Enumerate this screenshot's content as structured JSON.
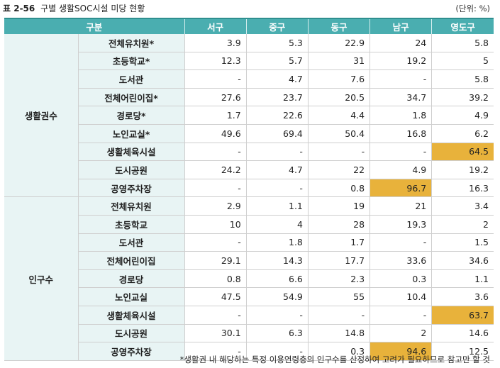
{
  "caption": {
    "label": "표 2-56",
    "title": "구별 생활SOC시설 미당 현황"
  },
  "unit": "(단위: %)",
  "header": [
    "구분",
    "서구",
    "중구",
    "동구",
    "남구",
    "영도구"
  ],
  "groups": [
    {
      "name": "생활권수",
      "rows": [
        {
          "item": "전체유치원*",
          "values": [
            "3.9",
            "5.3",
            "22.9",
            "24",
            "5.8"
          ],
          "highlight": []
        },
        {
          "item": "초등학교*",
          "values": [
            "12.3",
            "5.7",
            "31",
            "19.2",
            "5"
          ],
          "highlight": []
        },
        {
          "item": "도서관",
          "values": [
            "-",
            "4.7",
            "7.6",
            "-",
            "5.8"
          ],
          "highlight": []
        },
        {
          "item": "전체어린이집*",
          "values": [
            "27.6",
            "23.7",
            "20.5",
            "34.7",
            "39.2"
          ],
          "highlight": []
        },
        {
          "item": "경로당*",
          "values": [
            "1.7",
            "22.6",
            "4.4",
            "1.8",
            "4.9"
          ],
          "highlight": []
        },
        {
          "item": "노인교실*",
          "values": [
            "49.6",
            "69.4",
            "50.4",
            "16.8",
            "6.2"
          ],
          "highlight": []
        },
        {
          "item": "생활체육시설",
          "values": [
            "-",
            "-",
            "-",
            "-",
            "64.5"
          ],
          "highlight": [
            4
          ]
        },
        {
          "item": "도시공원",
          "values": [
            "24.2",
            "4.7",
            "22",
            "4.9",
            "19.2"
          ],
          "highlight": []
        },
        {
          "item": "공영주차장",
          "values": [
            "-",
            "-",
            "0.8",
            "96.7",
            "16.3"
          ],
          "highlight": [
            3
          ]
        }
      ]
    },
    {
      "name": "인구수",
      "rows": [
        {
          "item": "전체유치원",
          "values": [
            "2.9",
            "1.1",
            "19",
            "21",
            "3.4"
          ],
          "highlight": []
        },
        {
          "item": "초등학교",
          "values": [
            "10",
            "4",
            "28",
            "19.3",
            "2"
          ],
          "highlight": []
        },
        {
          "item": "도서관",
          "values": [
            "-",
            "1.8",
            "1.7",
            "-",
            "1.5"
          ],
          "highlight": []
        },
        {
          "item": "전체어린이집",
          "values": [
            "29.1",
            "14.3",
            "17.7",
            "33.6",
            "34.6"
          ],
          "highlight": []
        },
        {
          "item": "경로당",
          "values": [
            "0.8",
            "6.6",
            "2.3",
            "0.3",
            "1.1"
          ],
          "highlight": []
        },
        {
          "item": "노인교실",
          "values": [
            "47.5",
            "54.9",
            "55",
            "10.4",
            "3.6"
          ],
          "highlight": []
        },
        {
          "item": "생활체육시설",
          "values": [
            "-",
            "-",
            "-",
            "-",
            "63.7"
          ],
          "highlight": [
            4
          ]
        },
        {
          "item": "도시공원",
          "values": [
            "30.1",
            "6.3",
            "14.8",
            "2",
            "14.6"
          ],
          "highlight": []
        },
        {
          "item": "공영주차장",
          "values": [
            "-",
            "-",
            "0.3",
            "94.6",
            "12.5"
          ],
          "highlight": [
            3
          ]
        }
      ]
    }
  ],
  "note": "*생활권 내 해당하는 특정 이용연령층의 인구수를 산정하여 고려가 필요하므로 참고만 할 것",
  "colors": {
    "header": "#4aaeb0",
    "label_bg": "#e8f4f4",
    "highlight": "#e8b23b",
    "rule": "#2f8f8f"
  }
}
